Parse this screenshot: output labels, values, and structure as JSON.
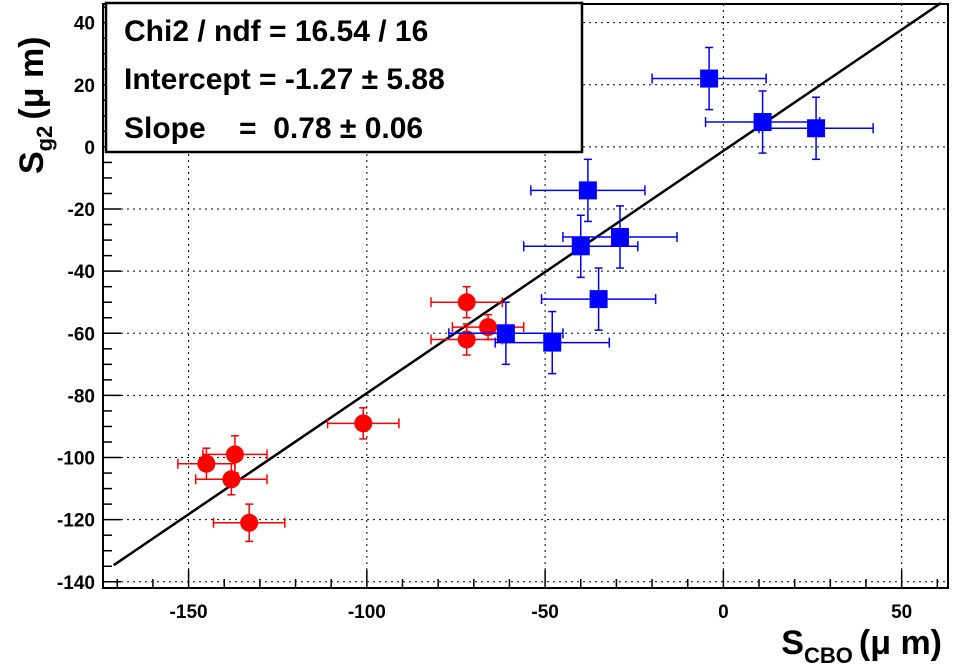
{
  "chart_data": {
    "type": "scatter",
    "xlim": [
      -174,
      63
    ],
    "ylim": [
      -142,
      46
    ],
    "log_x": false,
    "log_y": false,
    "grid": true,
    "xticks": [
      -150,
      -100,
      -50,
      0,
      50
    ],
    "yticks": [
      -140,
      -120,
      -100,
      -80,
      -60,
      -40,
      -20,
      0,
      20,
      40
    ],
    "xlabel": {
      "main": "S",
      "sub": "CBO",
      "unit": "(μ m)"
    },
    "ylabel": {
      "main": "S",
      "sub": "g2",
      "unit": "(μ m)"
    },
    "stats_box": {
      "position": "top-left",
      "lines": [
        "Chi2 / ndf = 16.54 / 16",
        "Intercept = -1.27 ± 5.88",
        "Slope    =  0.78 ± 0.06"
      ]
    },
    "fit_line": {
      "intercept": -1.27,
      "slope": 0.78,
      "x_range": [
        -171,
        61
      ],
      "color": "#000000"
    },
    "series": [
      {
        "marker": "circle",
        "color": "#ff0000",
        "points": [
          {
            "x": -145,
            "y": -102,
            "xerr": 8,
            "yerr": 5
          },
          {
            "x": -137,
            "y": -99,
            "xerr": 9,
            "yerr": 6
          },
          {
            "x": -138,
            "y": -107,
            "xerr": 10,
            "yerr": 5
          },
          {
            "x": -133,
            "y": -121,
            "xerr": 10,
            "yerr": 6
          },
          {
            "x": -101,
            "y": -89,
            "xerr": 10,
            "yerr": 5
          },
          {
            "x": -72,
            "y": -50,
            "xerr": 10,
            "yerr": 5
          },
          {
            "x": -72,
            "y": -62,
            "xerr": 10,
            "yerr": 5
          },
          {
            "x": -66,
            "y": -58,
            "xerr": 10,
            "yerr": 4
          }
        ]
      },
      {
        "marker": "square",
        "color": "#0000ff",
        "points": [
          {
            "x": -4,
            "y": 22,
            "xerr": 16,
            "yerr": 10
          },
          {
            "x": 11,
            "y": 8,
            "xerr": 16,
            "yerr": 10
          },
          {
            "x": 26,
            "y": 6,
            "xerr": 16,
            "yerr": 10
          },
          {
            "x": -38,
            "y": -14,
            "xerr": 16,
            "yerr": 10
          },
          {
            "x": -29,
            "y": -29,
            "xerr": 16,
            "yerr": 10
          },
          {
            "x": -40,
            "y": -32,
            "xerr": 16,
            "yerr": 10
          },
          {
            "x": -35,
            "y": -49,
            "xerr": 16,
            "yerr": 10
          },
          {
            "x": -61,
            "y": -60,
            "xerr": 16,
            "yerr": 10
          },
          {
            "x": -48,
            "y": -63,
            "xerr": 16,
            "yerr": 10
          }
        ]
      }
    ]
  }
}
